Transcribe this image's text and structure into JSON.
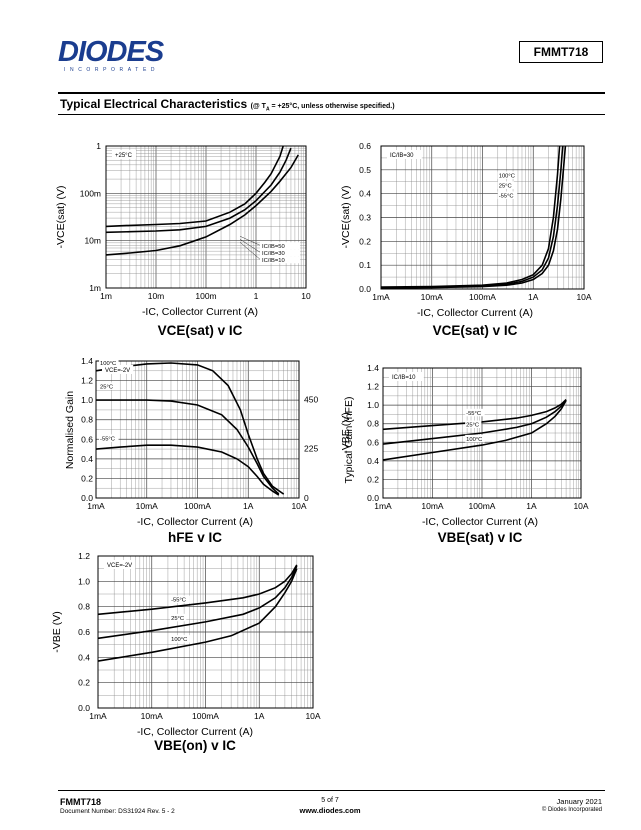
{
  "header": {
    "logo_text": "DIODES",
    "logo_sub": "INCORPORATED",
    "part_number": "FMMT718",
    "section_title": "Typical Electrical Characteristics",
    "section_condition": "(@ T",
    "section_condition_sub": "A",
    "section_condition_rest": " = +25°C, unless otherwise specified.)"
  },
  "footer": {
    "part": "FMMT718",
    "doc_label": "Document Number: DS31924 Rev. 5 - 2",
    "page": "5 of 7",
    "website": "www.diodes.com",
    "date": "January 2021",
    "copyright": "© Diodes Incorporated"
  },
  "chart_data": [
    {
      "id": "vcesat_log",
      "type": "line",
      "caption": "VCE(sat) v IC",
      "xlabel": "-IC, Collector Current (A)",
      "ylabel": "-VCE(sat) (V)",
      "xscale": "log",
      "yscale": "log",
      "xlim": [
        0.001,
        10
      ],
      "ylim": [
        0.001,
        1
      ],
      "xticks": [
        "1m",
        "10m",
        "100m",
        "1",
        "10"
      ],
      "yticks": [
        "1m",
        "10m",
        "100m",
        "1"
      ],
      "annotation": "+25°C",
      "series": [
        {
          "name": "IC/IB=10",
          "x": [
            0.001,
            0.003,
            0.01,
            0.03,
            0.1,
            0.3,
            0.6,
            1,
            2,
            3,
            5,
            7
          ],
          "y": [
            0.005,
            0.0055,
            0.0062,
            0.0078,
            0.012,
            0.022,
            0.035,
            0.055,
            0.11,
            0.18,
            0.35,
            0.65
          ]
        },
        {
          "name": "IC/IB=30",
          "x": [
            0.001,
            0.003,
            0.01,
            0.03,
            0.1,
            0.3,
            0.6,
            1,
            2,
            3,
            4,
            5
          ],
          "y": [
            0.015,
            0.0155,
            0.016,
            0.017,
            0.02,
            0.03,
            0.045,
            0.07,
            0.15,
            0.28,
            0.5,
            0.9
          ]
        },
        {
          "name": "IC/IB=50",
          "x": [
            0.001,
            0.003,
            0.01,
            0.03,
            0.1,
            0.3,
            0.6,
            1,
            1.5,
            2,
            3,
            3.5
          ],
          "y": [
            0.02,
            0.021,
            0.022,
            0.023,
            0.026,
            0.04,
            0.06,
            0.1,
            0.17,
            0.26,
            0.6,
            1
          ]
        }
      ],
      "legend": [
        "IC/IB=50",
        "IC/IB=30",
        "IC/IB=10"
      ]
    },
    {
      "id": "vcesat_lin",
      "type": "line",
      "caption": "VCE(sat) v IC",
      "xlabel": "-IC, Collector Current (A)",
      "ylabel": "-VCE(sat) (V)",
      "xscale": "log",
      "yscale": "linear",
      "xlim": [
        0.001,
        10
      ],
      "ylim": [
        0,
        0.6
      ],
      "xticks": [
        "1mA",
        "10mA",
        "100mA",
        "1A",
        "10A"
      ],
      "yticks": [
        "0.0",
        "0.1",
        "0.2",
        "0.3",
        "0.4",
        "0.5",
        "0.6"
      ],
      "annotation": "IC/IB=30",
      "series": [
        {
          "name": "100°C",
          "x": [
            0.001,
            0.01,
            0.1,
            0.3,
            0.6,
            1,
            1.5,
            2,
            2.5,
            3,
            3.3
          ],
          "y": [
            0.008,
            0.01,
            0.016,
            0.025,
            0.04,
            0.06,
            0.1,
            0.17,
            0.3,
            0.48,
            0.6
          ]
        },
        {
          "name": "25°C",
          "x": [
            0.001,
            0.01,
            0.1,
            0.3,
            0.6,
            1,
            1.5,
            2,
            2.5,
            3,
            3.5,
            3.8
          ],
          "y": [
            0.006,
            0.008,
            0.013,
            0.02,
            0.032,
            0.05,
            0.08,
            0.13,
            0.22,
            0.35,
            0.5,
            0.6
          ]
        },
        {
          "name": "-55°C",
          "x": [
            0.001,
            0.01,
            0.1,
            0.3,
            0.6,
            1,
            1.5,
            2,
            2.5,
            3,
            3.5,
            4,
            4.3
          ],
          "y": [
            0.004,
            0.006,
            0.01,
            0.016,
            0.025,
            0.04,
            0.065,
            0.1,
            0.16,
            0.25,
            0.38,
            0.52,
            0.6
          ]
        }
      ]
    },
    {
      "id": "hfe",
      "type": "line",
      "caption": "hFE v IC",
      "xlabel": "-IC, Collector Current (A)",
      "ylabel": "Normalised Gain",
      "y2label": "Typical Gain (hFE)",
      "xscale": "log",
      "yscale": "linear",
      "xlim": [
        0.001,
        10
      ],
      "ylim": [
        0,
        1.4
      ],
      "xticks": [
        "1mA",
        "10mA",
        "100mA",
        "1A",
        "10A"
      ],
      "yticks": [
        "0.0",
        "0.2",
        "0.4",
        "0.6",
        "0.8",
        "1.0",
        "1.2",
        "1.4"
      ],
      "y2ticks": [
        "0",
        "225",
        "450"
      ],
      "annotation": "VCE=-2V",
      "series": [
        {
          "name": "100°C",
          "x": [
            0.001,
            0.003,
            0.01,
            0.03,
            0.1,
            0.2,
            0.4,
            0.7,
            1,
            1.5,
            2,
            3,
            5
          ],
          "y": [
            1.3,
            1.34,
            1.37,
            1.38,
            1.36,
            1.3,
            1.15,
            0.9,
            0.65,
            0.4,
            0.25,
            0.12,
            0.04
          ]
        },
        {
          "name": "25°C",
          "x": [
            0.001,
            0.003,
            0.01,
            0.03,
            0.1,
            0.3,
            0.6,
            1,
            1.5,
            2,
            3,
            4
          ],
          "y": [
            1.0,
            1.0,
            1.0,
            0.99,
            0.95,
            0.85,
            0.7,
            0.52,
            0.35,
            0.22,
            0.1,
            0.04
          ]
        },
        {
          "name": "-55°C",
          "x": [
            0.001,
            0.003,
            0.01,
            0.03,
            0.1,
            0.3,
            0.6,
            1,
            1.5,
            2,
            3,
            4
          ],
          "y": [
            0.5,
            0.52,
            0.54,
            0.54,
            0.52,
            0.47,
            0.4,
            0.32,
            0.22,
            0.14,
            0.07,
            0.03
          ]
        }
      ]
    },
    {
      "id": "vbesat",
      "type": "line",
      "caption": "VBE(sat) v IC",
      "xlabel": "-IC, Collector Current (A)",
      "ylabel": "-VBE (V)",
      "xscale": "log",
      "yscale": "linear",
      "xlim": [
        0.001,
        10
      ],
      "ylim": [
        0,
        1.4
      ],
      "xticks": [
        "1mA",
        "10mA",
        "100mA",
        "1A",
        "10A"
      ],
      "yticks": [
        "0.0",
        "0.2",
        "0.4",
        "0.6",
        "0.8",
        "1.0",
        "1.2",
        "1.4"
      ],
      "annotation": "IC/IB=10",
      "series": [
        {
          "name": "-55°C",
          "x": [
            0.001,
            0.01,
            0.1,
            0.5,
            1,
            2,
            3,
            4,
            5
          ],
          "y": [
            0.74,
            0.78,
            0.82,
            0.86,
            0.89,
            0.93,
            0.97,
            1.01,
            1.06
          ]
        },
        {
          "name": "25°C",
          "x": [
            0.001,
            0.01,
            0.1,
            0.5,
            1,
            2,
            3,
            4,
            5
          ],
          "y": [
            0.58,
            0.64,
            0.7,
            0.76,
            0.8,
            0.87,
            0.93,
            0.99,
            1.06
          ]
        },
        {
          "name": "100°C",
          "x": [
            0.001,
            0.01,
            0.1,
            0.3,
            1,
            2,
            3,
            4,
            5
          ],
          "y": [
            0.41,
            0.49,
            0.57,
            0.62,
            0.7,
            0.8,
            0.88,
            0.96,
            1.05
          ]
        }
      ]
    },
    {
      "id": "vbeon",
      "type": "line",
      "caption": "VBE(on) v IC",
      "xlabel": "-IC, Collector Current (A)",
      "ylabel": "-VBE (V)",
      "xscale": "log",
      "yscale": "linear",
      "xlim": [
        0.001,
        10
      ],
      "ylim": [
        0,
        1.2
      ],
      "xticks": [
        "1mA",
        "10mA",
        "100mA",
        "1A",
        "10A"
      ],
      "yticks": [
        "0.0",
        "0.2",
        "0.4",
        "0.6",
        "0.8",
        "1.0",
        "1.2"
      ],
      "annotation": "VCE=-2V",
      "series": [
        {
          "name": "-55°C",
          "x": [
            0.001,
            0.01,
            0.1,
            0.5,
            1,
            2,
            3,
            4,
            5
          ],
          "y": [
            0.74,
            0.78,
            0.83,
            0.87,
            0.9,
            0.95,
            1.0,
            1.06,
            1.13
          ]
        },
        {
          "name": "25°C",
          "x": [
            0.001,
            0.01,
            0.1,
            0.5,
            1,
            2,
            3,
            4,
            5
          ],
          "y": [
            0.55,
            0.61,
            0.68,
            0.74,
            0.79,
            0.87,
            0.95,
            1.03,
            1.12
          ]
        },
        {
          "name": "100°C",
          "x": [
            0.001,
            0.01,
            0.1,
            0.3,
            1,
            2,
            3,
            4,
            5
          ],
          "y": [
            0.37,
            0.44,
            0.52,
            0.57,
            0.67,
            0.8,
            0.91,
            1.0,
            1.1
          ]
        }
      ]
    }
  ]
}
